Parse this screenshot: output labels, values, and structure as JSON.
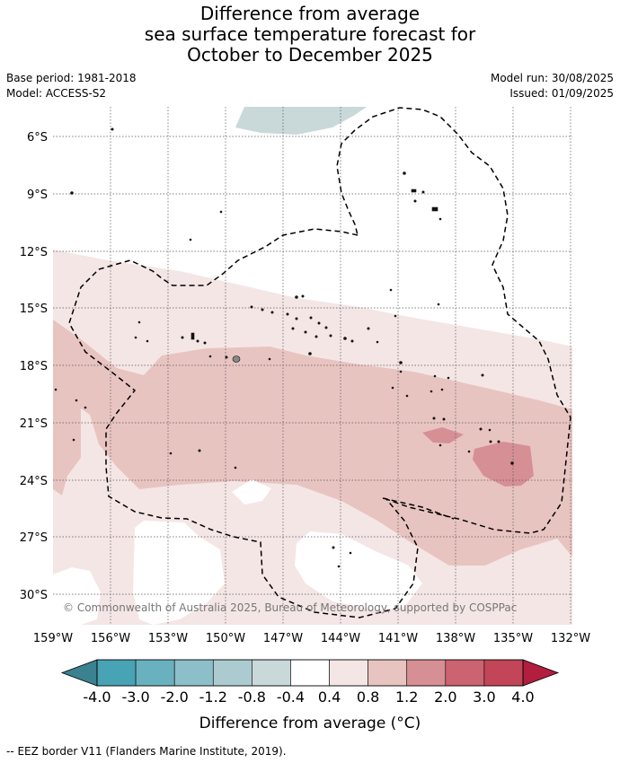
{
  "title": {
    "line1": "Difference from average",
    "line2": "sea surface temperature forecast for",
    "line3": "October to December 2025"
  },
  "meta": {
    "base_period": "Base period: 1981-2018",
    "model": "Model: ACCESS-S2",
    "model_run": "Model run: 30/08/2025",
    "issued": "Issued: 01/09/2025"
  },
  "map": {
    "lat_ticks": [
      "6°S",
      "9°S",
      "12°S",
      "15°S",
      "18°S",
      "21°S",
      "24°S",
      "27°S",
      "30°S"
    ],
    "lon_ticks": [
      "159°W",
      "156°W",
      "153°W",
      "150°W",
      "147°W",
      "144°W",
      "141°W",
      "138°W",
      "135°W",
      "132°W"
    ],
    "copyright": "© Commonwealth of Australia 2025, Bureau of Meteorology, supported by COSPPac"
  },
  "colorbar": {
    "tick_labels": [
      "-4.0",
      "-3.0",
      "-2.0",
      "-1.2",
      "-0.8",
      "-0.4",
      "0.4",
      "0.8",
      "1.2",
      "2.0",
      "3.0",
      "4.0"
    ],
    "colors": [
      "#48a3b4",
      "#6ab1bf",
      "#8dbfc9",
      "#abcbd0",
      "#c9d8d9",
      "#ffffff",
      "#f4e6e5",
      "#e8c4c1",
      "#d68f95",
      "#cc6370",
      "#c24657"
    ],
    "under_color": "#3a8290",
    "over_color": "#b11e3e",
    "label": "Difference from average (°C)"
  },
  "legend": {
    "eez_label": "-- EEZ border V11 (Flanders Marine Institute, 2019)."
  }
}
